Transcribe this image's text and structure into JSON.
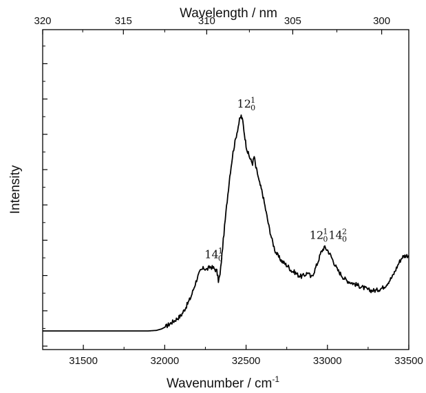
{
  "chart_data": {
    "type": "line",
    "xlabel": "Wavenumber / cm",
    "xlabel_sup": "-1",
    "x2label": "Wavelength / nm",
    "ylabel": "Intensity",
    "xlim": [
      31250,
      33500
    ],
    "ylim": [
      0,
      100
    ],
    "x_ticks": [
      31500,
      32000,
      32500,
      33000,
      33500
    ],
    "x_tick_labels": [
      "31500",
      "32000",
      "32500",
      "33000",
      "33500"
    ],
    "x2_ticks_nm": [
      320,
      315,
      310,
      305,
      300
    ],
    "x2_tick_labels": [
      "320",
      "315",
      "310",
      "305",
      "300"
    ],
    "y_tick_labels": [],
    "grid": false,
    "legend": "none",
    "line_color": "#000000",
    "series": [
      {
        "x": [
          31250,
          31500,
          31700,
          31900,
          31950,
          31980,
          32000,
          32030,
          32060,
          32100,
          32130,
          32160,
          32180,
          32200,
          32220,
          32240,
          32260,
          32280,
          32300,
          32320,
          32330,
          32340,
          32360,
          32380,
          32400,
          32420,
          32440,
          32460,
          32470,
          32480,
          32490,
          32500,
          32510,
          32520,
          32530,
          32540,
          32550,
          32560,
          32570,
          32580,
          32590,
          32600,
          32620,
          32640,
          32660,
          32680,
          32700,
          32720,
          32740,
          32760,
          32780,
          32800,
          32820,
          32840,
          32860,
          32880,
          32900,
          32920,
          32940,
          32960,
          32980,
          33000,
          33020,
          33040,
          33060,
          33080,
          33100,
          33120,
          33140,
          33160,
          33180,
          33200,
          33220,
          33240,
          33260,
          33280,
          33300,
          33320,
          33340,
          33360,
          33380,
          33400,
          33420,
          33440,
          33460,
          33480,
          33500
        ],
        "y": [
          0.5,
          0.5,
          0.5,
          0.5,
          0.7,
          1.2,
          1.8,
          3.0,
          4.2,
          6.0,
          9.0,
          12.5,
          16.0,
          19.5,
          22.0,
          23.0,
          22.5,
          23.5,
          23.0,
          22.0,
          18.5,
          20.5,
          33.0,
          45.0,
          56.0,
          64.5,
          70.5,
          76.0,
          77.5,
          75.5,
          71.0,
          67.0,
          64.5,
          63.0,
          61.5,
          60.5,
          63.0,
          59.0,
          57.0,
          54.0,
          52.0,
          50.0,
          44.0,
          38.0,
          33.0,
          29.0,
          27.0,
          25.5,
          24.5,
          23.5,
          22.0,
          21.5,
          20.5,
          20.0,
          20.5,
          21.5,
          19.5,
          22.0,
          25.0,
          28.5,
          30.5,
          29.5,
          27.5,
          25.0,
          22.5,
          21.0,
          19.5,
          18.5,
          18.0,
          17.5,
          17.0,
          16.5,
          16.0,
          15.5,
          15.0,
          15.0,
          15.0,
          15.5,
          16.0,
          17.0,
          18.5,
          20.0,
          22.5,
          25.0,
          27.0,
          27.5,
          27.5
        ]
      }
    ],
    "annotations": [
      {
        "base": "14",
        "sup": "1",
        "sub": "0",
        "x": 32300,
        "y": 26.5
      },
      {
        "base": "12",
        "sup": "1",
        "sub": "0",
        "x": 32500,
        "y": 80.5
      },
      {
        "base": "12",
        "sup": "1",
        "sub": "0",
        "base2": "14",
        "sup2": "2",
        "sub2": "0",
        "x": 33000,
        "y": 33.5
      }
    ]
  }
}
